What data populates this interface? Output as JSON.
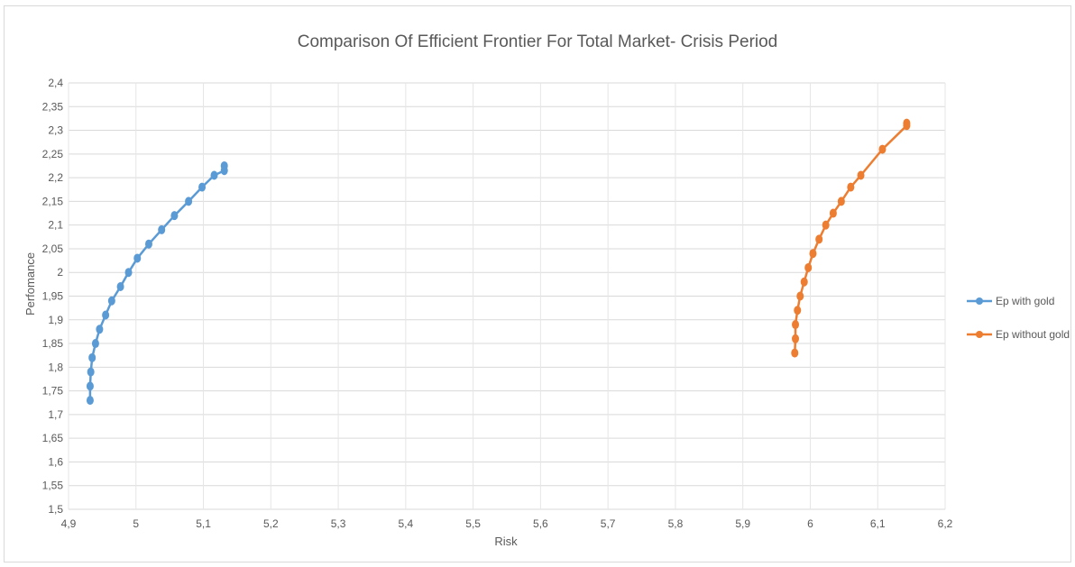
{
  "chart_data": {
    "type": "scatter",
    "title": "Comparison Of Efficient Frontier For Total Market- Crisis Period",
    "xlabel": "Risk",
    "ylabel": "Perfomance",
    "xlim": [
      4.9,
      6.2
    ],
    "ylim": [
      1.5,
      2.4
    ],
    "x_ticks": [
      "4,9",
      "5",
      "5,1",
      "5,2",
      "5,3",
      "5,4",
      "5,5",
      "5,6",
      "5,7",
      "5,8",
      "5,9",
      "6",
      "6,1",
      "6,2"
    ],
    "y_ticks": [
      "1,5",
      "1,55",
      "1,6",
      "1,65",
      "1,7",
      "1,75",
      "1,8",
      "1,85",
      "1,9",
      "1,95",
      "2",
      "2,05",
      "2,1",
      "2,15",
      "2,2",
      "2,25",
      "2,3",
      "2,35",
      "2,4"
    ],
    "grid": true,
    "legend_position": "right",
    "series": [
      {
        "name": "Ep with gold",
        "color": "#5b9bd5",
        "points": [
          [
            4.932,
            1.73
          ],
          [
            4.932,
            1.76
          ],
          [
            4.933,
            1.79
          ],
          [
            4.935,
            1.82
          ],
          [
            4.94,
            1.85
          ],
          [
            4.946,
            1.88
          ],
          [
            4.955,
            1.91
          ],
          [
            4.964,
            1.94
          ],
          [
            4.977,
            1.97
          ],
          [
            4.989,
            2.0
          ],
          [
            5.002,
            2.03
          ],
          [
            5.019,
            2.06
          ],
          [
            5.038,
            2.09
          ],
          [
            5.057,
            2.12
          ],
          [
            5.078,
            2.15
          ],
          [
            5.098,
            2.18
          ],
          [
            5.116,
            2.205
          ],
          [
            5.131,
            2.215
          ],
          [
            5.131,
            2.225
          ]
        ]
      },
      {
        "name": "Ep without gold",
        "color": "#ed7d31",
        "points": [
          [
            5.977,
            1.83
          ],
          [
            5.978,
            1.86
          ],
          [
            5.978,
            1.89
          ],
          [
            5.981,
            1.92
          ],
          [
            5.985,
            1.95
          ],
          [
            5.991,
            1.98
          ],
          [
            5.997,
            2.01
          ],
          [
            6.004,
            2.04
          ],
          [
            6.013,
            2.07
          ],
          [
            6.023,
            2.1
          ],
          [
            6.034,
            2.125
          ],
          [
            6.046,
            2.15
          ],
          [
            6.06,
            2.18
          ],
          [
            6.075,
            2.205
          ],
          [
            6.107,
            2.26
          ],
          [
            6.143,
            2.31
          ],
          [
            6.143,
            2.315
          ]
        ]
      }
    ]
  }
}
